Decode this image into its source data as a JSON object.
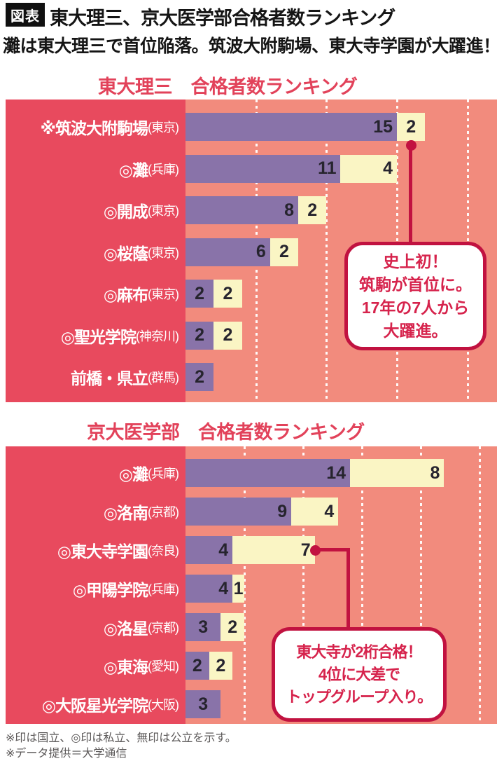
{
  "header": {
    "badge": "図表",
    "title": "東大理三、京大医学部合格者数ランキング",
    "subtitle": "灘は東大理三で首位陥落。筑波大附駒場、東大寺学園が大躍進！"
  },
  "chart_data": [
    {
      "type": "bar",
      "orientation": "horizontal",
      "title": "東大理三　合格者数ランキング",
      "categories": [
        "※筑波大附駒場(東京)",
        "◎灘(兵庫)",
        "◎開成(東京)",
        "◎桜蔭(東京)",
        "◎麻布(東京)",
        "◎聖光学院(神奈川)",
        "前橋・県立(群馬)"
      ],
      "series": [
        {
          "name": "primary-segment",
          "color": "#8973a9",
          "values": [
            15,
            11,
            8,
            6,
            2,
            2,
            2
          ]
        },
        {
          "name": "secondary-segment",
          "color": "#faf5c4",
          "values": [
            2,
            4,
            2,
            2,
            2,
            2,
            0
          ]
        }
      ],
      "xlim": [
        0,
        22.1
      ],
      "grid_values": [
        5,
        10,
        15,
        20
      ],
      "grid_style": "dotted-white",
      "legend": "none",
      "callout": {
        "points_to": "※筑波大附駒場(東京)",
        "lines": [
          "史上初！",
          "筑駒が首位に。",
          "17年の7人から",
          "大躍進。"
        ]
      }
    },
    {
      "type": "bar",
      "orientation": "horizontal",
      "title": "京大医学部　合格者数ランキング",
      "categories": [
        "◎灘(兵庫)",
        "◎洛南(京都)",
        "◎東大寺学園(奈良)",
        "◎甲陽学院(兵庫)",
        "◎洛星(京都)",
        "◎東海(愛知)",
        "◎大阪星光学院(大阪)"
      ],
      "series": [
        {
          "name": "primary-segment",
          "color": "#8973a9",
          "values": [
            14,
            9,
            4,
            4,
            3,
            2,
            3
          ]
        },
        {
          "name": "secondary-segment",
          "color": "#faf5c4",
          "values": [
            8,
            4,
            7,
            1,
            2,
            2,
            0
          ]
        }
      ],
      "xlim": [
        0,
        26.5
      ],
      "grid_values": [
        5,
        10,
        15,
        20,
        25
      ],
      "grid_style": "dotted-white",
      "legend": "none",
      "callout": {
        "points_to": "◎東大寺学園(奈良)",
        "lines": [
          "東大寺が2桁合格！",
          "4位に大差で",
          "トップグループ入り。"
        ]
      }
    }
  ],
  "footer": {
    "notes": [
      "※印は国立、◎印は私立、無印は公立を示す。",
      "※データ提供＝大学通信"
    ]
  },
  "colors": {
    "label_panel": "#e84a5e",
    "plot_bg": "#f28b7d",
    "bar_primary": "#8973a9",
    "bar_secondary": "#faf5c4",
    "accent": "#c11240",
    "heading_red": "#e2425a",
    "callout_text": "#d6234c",
    "number_ink": "#26242e",
    "header_ink": "#151515",
    "footer_gray": "#5a5757"
  }
}
